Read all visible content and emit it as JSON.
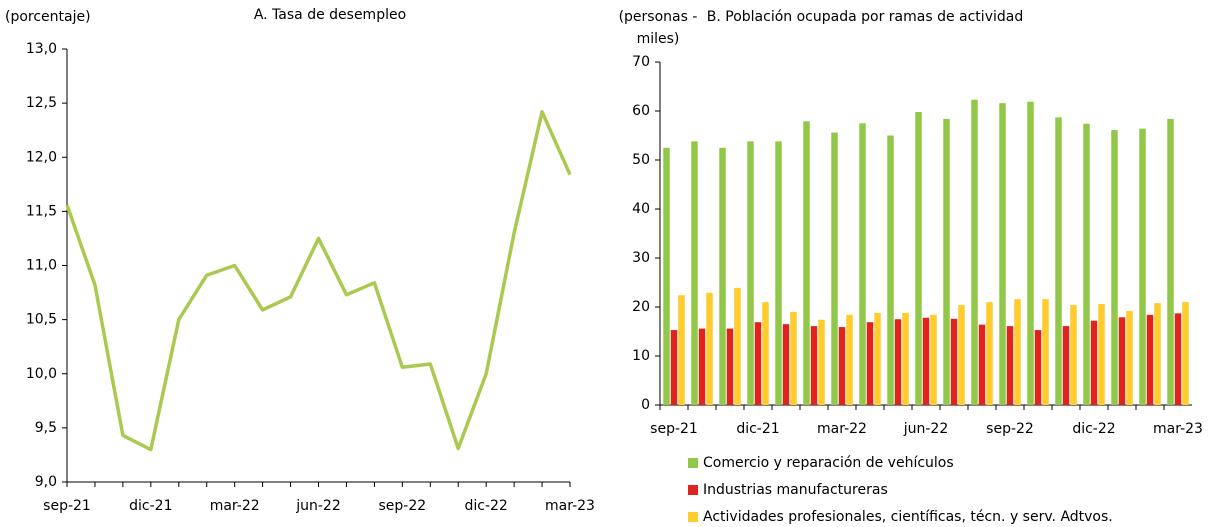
{
  "chart_data": [
    {
      "type": "line",
      "title": "A. Tasa de desempleo",
      "y_label": "(porcentaje)",
      "categories": [
        "sep-21",
        null,
        null,
        "dic-21",
        null,
        null,
        "mar-22",
        null,
        null,
        "jun-22",
        null,
        null,
        "sep-22",
        null,
        null,
        "dic-22",
        null,
        null,
        "mar-23"
      ],
      "series": [
        {
          "name": "Tasa de desempleo",
          "color": "#A9C94F",
          "values": [
            11.56,
            10.82,
            9.43,
            9.3,
            10.5,
            10.91,
            11.0,
            10.59,
            10.71,
            11.25,
            10.73,
            10.84,
            10.06,
            10.09,
            9.31,
            10.0,
            11.3,
            12.42,
            11.84
          ]
        }
      ],
      "ylim": [
        9,
        13
      ],
      "yticks": [
        {
          "value": 9,
          "label": "9,0"
        },
        {
          "value": 9.5,
          "label": "9,5"
        },
        {
          "value": 10,
          "label": "10,0"
        },
        {
          "value": 10.5,
          "label": "10,5"
        },
        {
          "value": 11,
          "label": "11,0"
        },
        {
          "value": 11.5,
          "label": "11,5"
        },
        {
          "value": 12,
          "label": "12,0"
        },
        {
          "value": 12.5,
          "label": "12,5"
        },
        {
          "value": 13,
          "label": "13,0"
        }
      ],
      "legend": false
    },
    {
      "type": "bar",
      "title": "B. Población ocupada por ramas de actividad",
      "y_label": "(personas - miles)",
      "categories": [
        "sep-21",
        null,
        null,
        "dic-21",
        null,
        null,
        "mar-22",
        null,
        null,
        "jun-22",
        null,
        null,
        "sep-22",
        null,
        null,
        "dic-22",
        null,
        null,
        "mar-23"
      ],
      "series": [
        {
          "name": "Comercio y reparación de vehículos",
          "color": "#92C84A",
          "values": [
            52.5,
            53.8,
            52.5,
            53.8,
            53.8,
            57.9,
            55.6,
            57.5,
            55.0,
            59.8,
            58.4,
            62.3,
            61.6,
            61.9,
            58.7,
            57.4,
            56.1,
            56.4,
            58.4
          ]
        },
        {
          "name": "Industrias manufactureras",
          "color": "#E0231C",
          "values": [
            15.3,
            15.6,
            15.6,
            16.9,
            16.5,
            16.1,
            15.9,
            16.9,
            17.5,
            17.8,
            17.6,
            16.4,
            16.1,
            15.3,
            16.1,
            17.2,
            17.9,
            18.4,
            18.7
          ]
        },
        {
          "name": "Actividades profesionales, científicas, técn. y serv. Adtvos.",
          "color": "#FFCC2E",
          "values": [
            22.4,
            22.9,
            23.9,
            21.0,
            19.0,
            17.4,
            18.4,
            18.8,
            18.8,
            18.4,
            20.4,
            21.0,
            21.6,
            21.6,
            20.4,
            20.6,
            19.2,
            20.8,
            21.0
          ]
        }
      ],
      "ylim": [
        0,
        70
      ],
      "yticks": [
        0,
        10,
        20,
        30,
        40,
        50,
        60,
        70
      ],
      "legend": "bottom"
    }
  ]
}
